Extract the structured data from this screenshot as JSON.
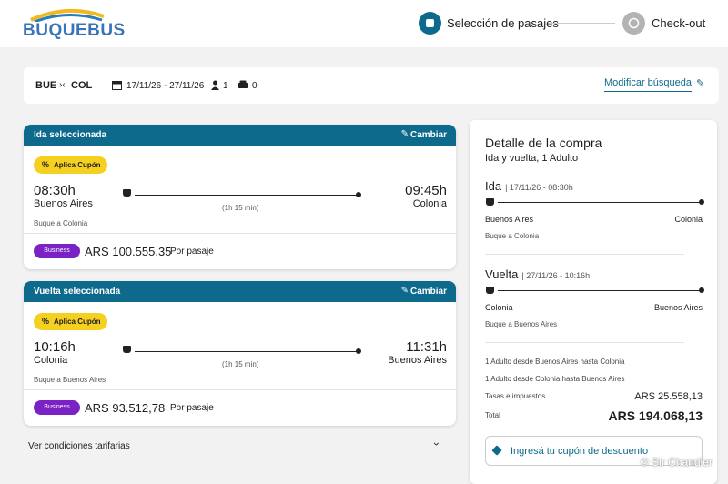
{
  "header": {
    "logo": "BUQUEBUS",
    "steps": [
      "Selección de pasajes",
      "Check-out"
    ]
  },
  "search": {
    "origin": "BUE",
    "destination": "COL",
    "dates": "17/11/26 - 27/11/26",
    "passengers": "1",
    "vehicles": "0",
    "modify": "Modificar búsqueda"
  },
  "trips": [
    {
      "title": "Ida seleccionada",
      "change": "Cambiar",
      "coupon": "Aplica Cupón",
      "departure_time": "08:30h",
      "departure_city": "Buenos Aires",
      "duration": "(1h 15 min)",
      "arrival_time": "09:45h",
      "arrival_city": "Colonia",
      "vessel": "Buque a Colonia",
      "class": "Business",
      "price": "ARS 100.555,35",
      "price_unit": "Por pasaje"
    },
    {
      "title": "Vuelta seleccionada",
      "change": "Cambiar",
      "coupon": "Aplica Cupón",
      "departure_time": "10:16h",
      "departure_city": "Colonia",
      "duration": "(1h 15 min)",
      "arrival_time": "11:31h",
      "arrival_city": "Buenos Aires",
      "vessel": "Buque a Buenos Aires",
      "class": "Business",
      "price": "ARS 93.512,78",
      "price_unit": "Por pasaje"
    }
  ],
  "conditions": "Ver condiciones tarifarias",
  "summary": {
    "title": "Detalle de la compra",
    "subtitle": "Ida y vuelta, 1 Adulto",
    "legs": [
      {
        "label": "Ida",
        "detail": "| 17/11/26 - 08:30h",
        "from": "Buenos Aires",
        "to": "Colonia",
        "vessel": "Buque a Colonia"
      },
      {
        "label": "Vuelta",
        "detail": "| 27/11/26 - 10:16h",
        "from": "Colonia",
        "to": "Buenos Aires",
        "vessel": "Buque a Buenos Aires"
      }
    ],
    "lines": [
      "1 Adulto desde Buenos Aires hasta Colonia",
      "1 Adulto desde Colonia hasta Buenos Aires"
    ],
    "taxes_label": "Tasas e impuestos",
    "taxes": "ARS 25.558,13",
    "total_label": "Total",
    "total": "ARS 194.068,13",
    "coupon": "Ingresá tu cupón de descuento"
  },
  "watermark": "© Sir Chandler"
}
